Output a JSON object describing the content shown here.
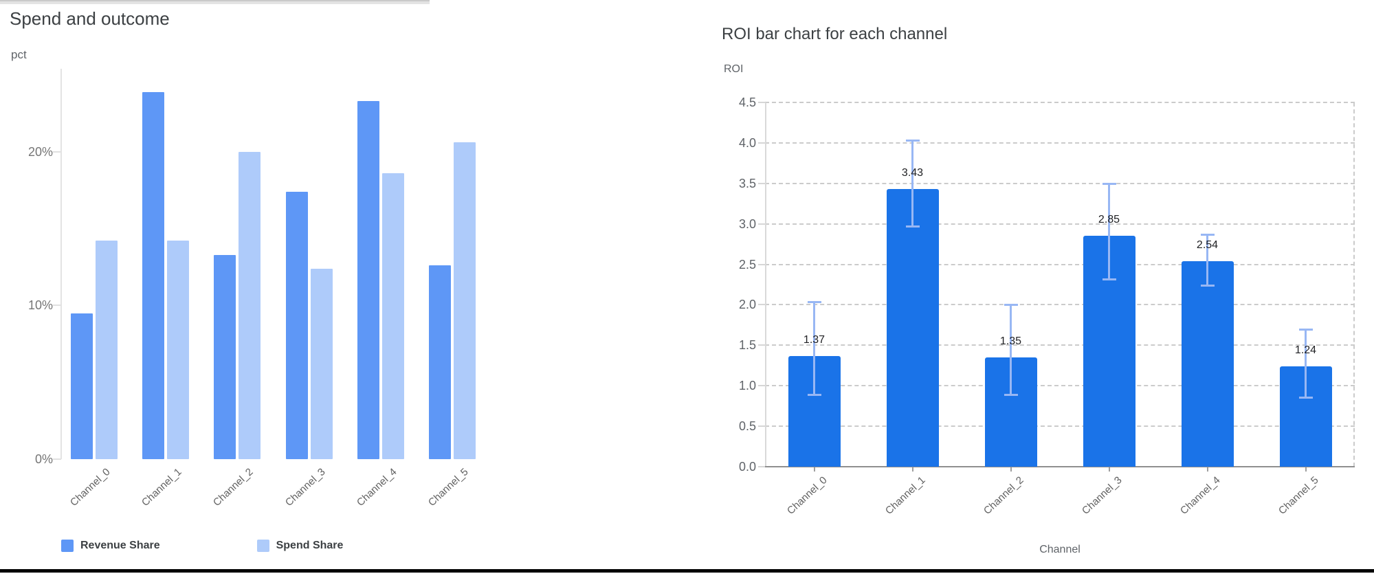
{
  "left_chart": {
    "title": "Spend and outcome",
    "unit_label": "pct"
  },
  "right_chart": {
    "title": "ROI bar chart for each channel",
    "y_axis_label": "ROI",
    "x_axis_label": "Channel"
  },
  "chart_data": [
    {
      "type": "bar",
      "title": "Spend and outcome",
      "ylabel": "pct",
      "categories": [
        "Channel_0",
        "Channel_1",
        "Channel_2",
        "Channel_3",
        "Channel_4",
        "Channel_5"
      ],
      "series": [
        {
          "name": "Revenue Share",
          "color": "#5e97f6",
          "values": [
            9.5,
            23.9,
            13.3,
            17.4,
            23.3,
            12.6
          ]
        },
        {
          "name": "Spend Share",
          "color": "#aecbfa",
          "values": [
            14.2,
            14.2,
            20.0,
            12.4,
            18.6,
            20.6
          ]
        }
      ],
      "y_ticks": [
        {
          "value": 0,
          "label": "0%"
        },
        {
          "value": 10,
          "label": "10%"
        },
        {
          "value": 20,
          "label": "20%"
        }
      ],
      "ylim": [
        0,
        25.4
      ],
      "grid": "solid",
      "legend_position": "bottom"
    },
    {
      "type": "bar",
      "title": "ROI bar chart for each channel",
      "xlabel": "Channel",
      "ylabel": "ROI",
      "categories": [
        "Channel_0",
        "Channel_1",
        "Channel_2",
        "Channel_3",
        "Channel_4",
        "Channel_5"
      ],
      "values": [
        1.37,
        3.43,
        1.35,
        2.85,
        2.54,
        1.24
      ],
      "value_labels": [
        "1.37",
        "3.43",
        "1.35",
        "2.85",
        "2.54",
        "1.24"
      ],
      "bar_color": "#1a73e8",
      "error_bars": {
        "color": "#98b7f4",
        "low": [
          0.88,
          2.96,
          0.88,
          2.31,
          2.23,
          0.85
        ],
        "high": [
          2.04,
          4.03,
          2.0,
          3.5,
          2.87,
          1.7
        ]
      },
      "y_ticks": [
        {
          "value": 0.0,
          "label": "0.0"
        },
        {
          "value": 0.5,
          "label": "0.5"
        },
        {
          "value": 1.0,
          "label": "1.0"
        },
        {
          "value": 1.5,
          "label": "1.5"
        },
        {
          "value": 2.0,
          "label": "2.0"
        },
        {
          "value": 2.5,
          "label": "2.5"
        },
        {
          "value": 3.0,
          "label": "3.0"
        },
        {
          "value": 3.5,
          "label": "3.5"
        },
        {
          "value": 4.0,
          "label": "4.0"
        },
        {
          "value": 4.5,
          "label": "4.5"
        }
      ],
      "ylim": [
        0,
        4.5
      ],
      "grid": "dashed"
    }
  ]
}
